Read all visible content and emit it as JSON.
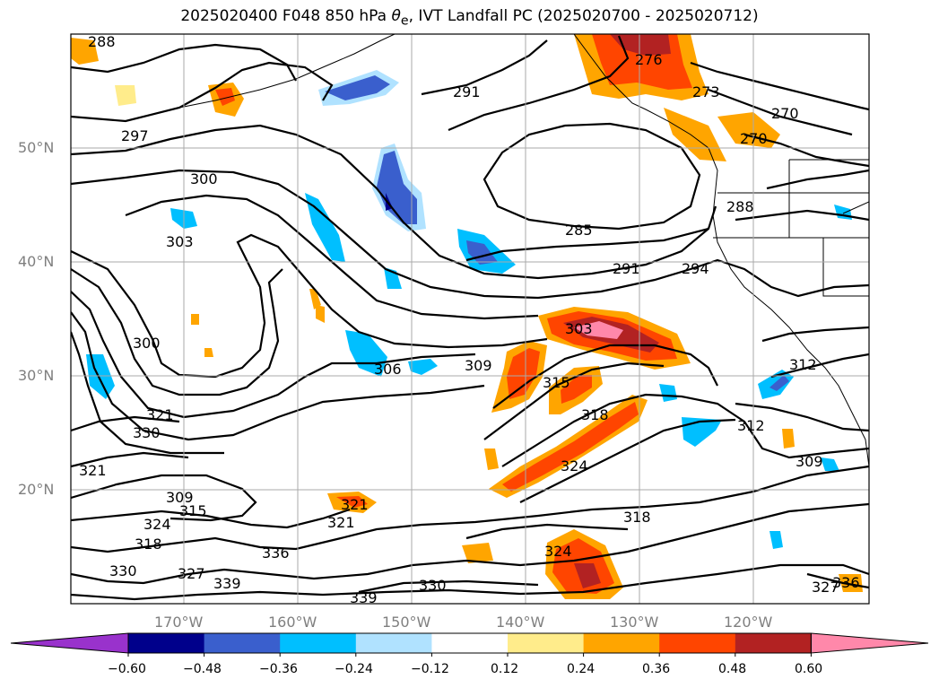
{
  "title": {
    "prefix": "2025020400 F048 850 hPa ",
    "symbol": "θ",
    "sub": "e",
    "suffix": ", IVT Landfall PC (2025020700 - 2025020712)"
  },
  "map": {
    "lat_labels": [
      "50°N",
      "40°N",
      "30°N",
      "20°N"
    ],
    "lon_labels": [
      "170°W",
      "160°W",
      "150°W",
      "140°W",
      "130°W",
      "120°W"
    ],
    "contour_labels": [
      "288",
      "297",
      "300",
      "303",
      "300",
      "321",
      "330",
      "321",
      "309",
      "315",
      "324",
      "318",
      "330",
      "327",
      "339",
      "336",
      "339",
      "330",
      "306",
      "309",
      "315",
      "318",
      "324",
      "321",
      "321",
      "318",
      "324",
      "303",
      "291",
      "276",
      "273",
      "270",
      "270",
      "288",
      "285",
      "291",
      "294",
      "312",
      "312",
      "309",
      "327",
      "336"
    ]
  },
  "colorbar": {
    "ticks": [
      "−0.60",
      "−0.48",
      "−0.36",
      "−0.24",
      "−0.12",
      "0.12",
      "0.24",
      "0.36",
      "0.48",
      "0.60"
    ],
    "colors": [
      "#9932cc",
      "#00008b",
      "#3a5fcd",
      "#00bfff",
      "#b0e2ff",
      "#ffffff",
      "#ffec8b",
      "#ffa500",
      "#ff4500",
      "#b22222",
      "#ff88aa"
    ]
  }
}
